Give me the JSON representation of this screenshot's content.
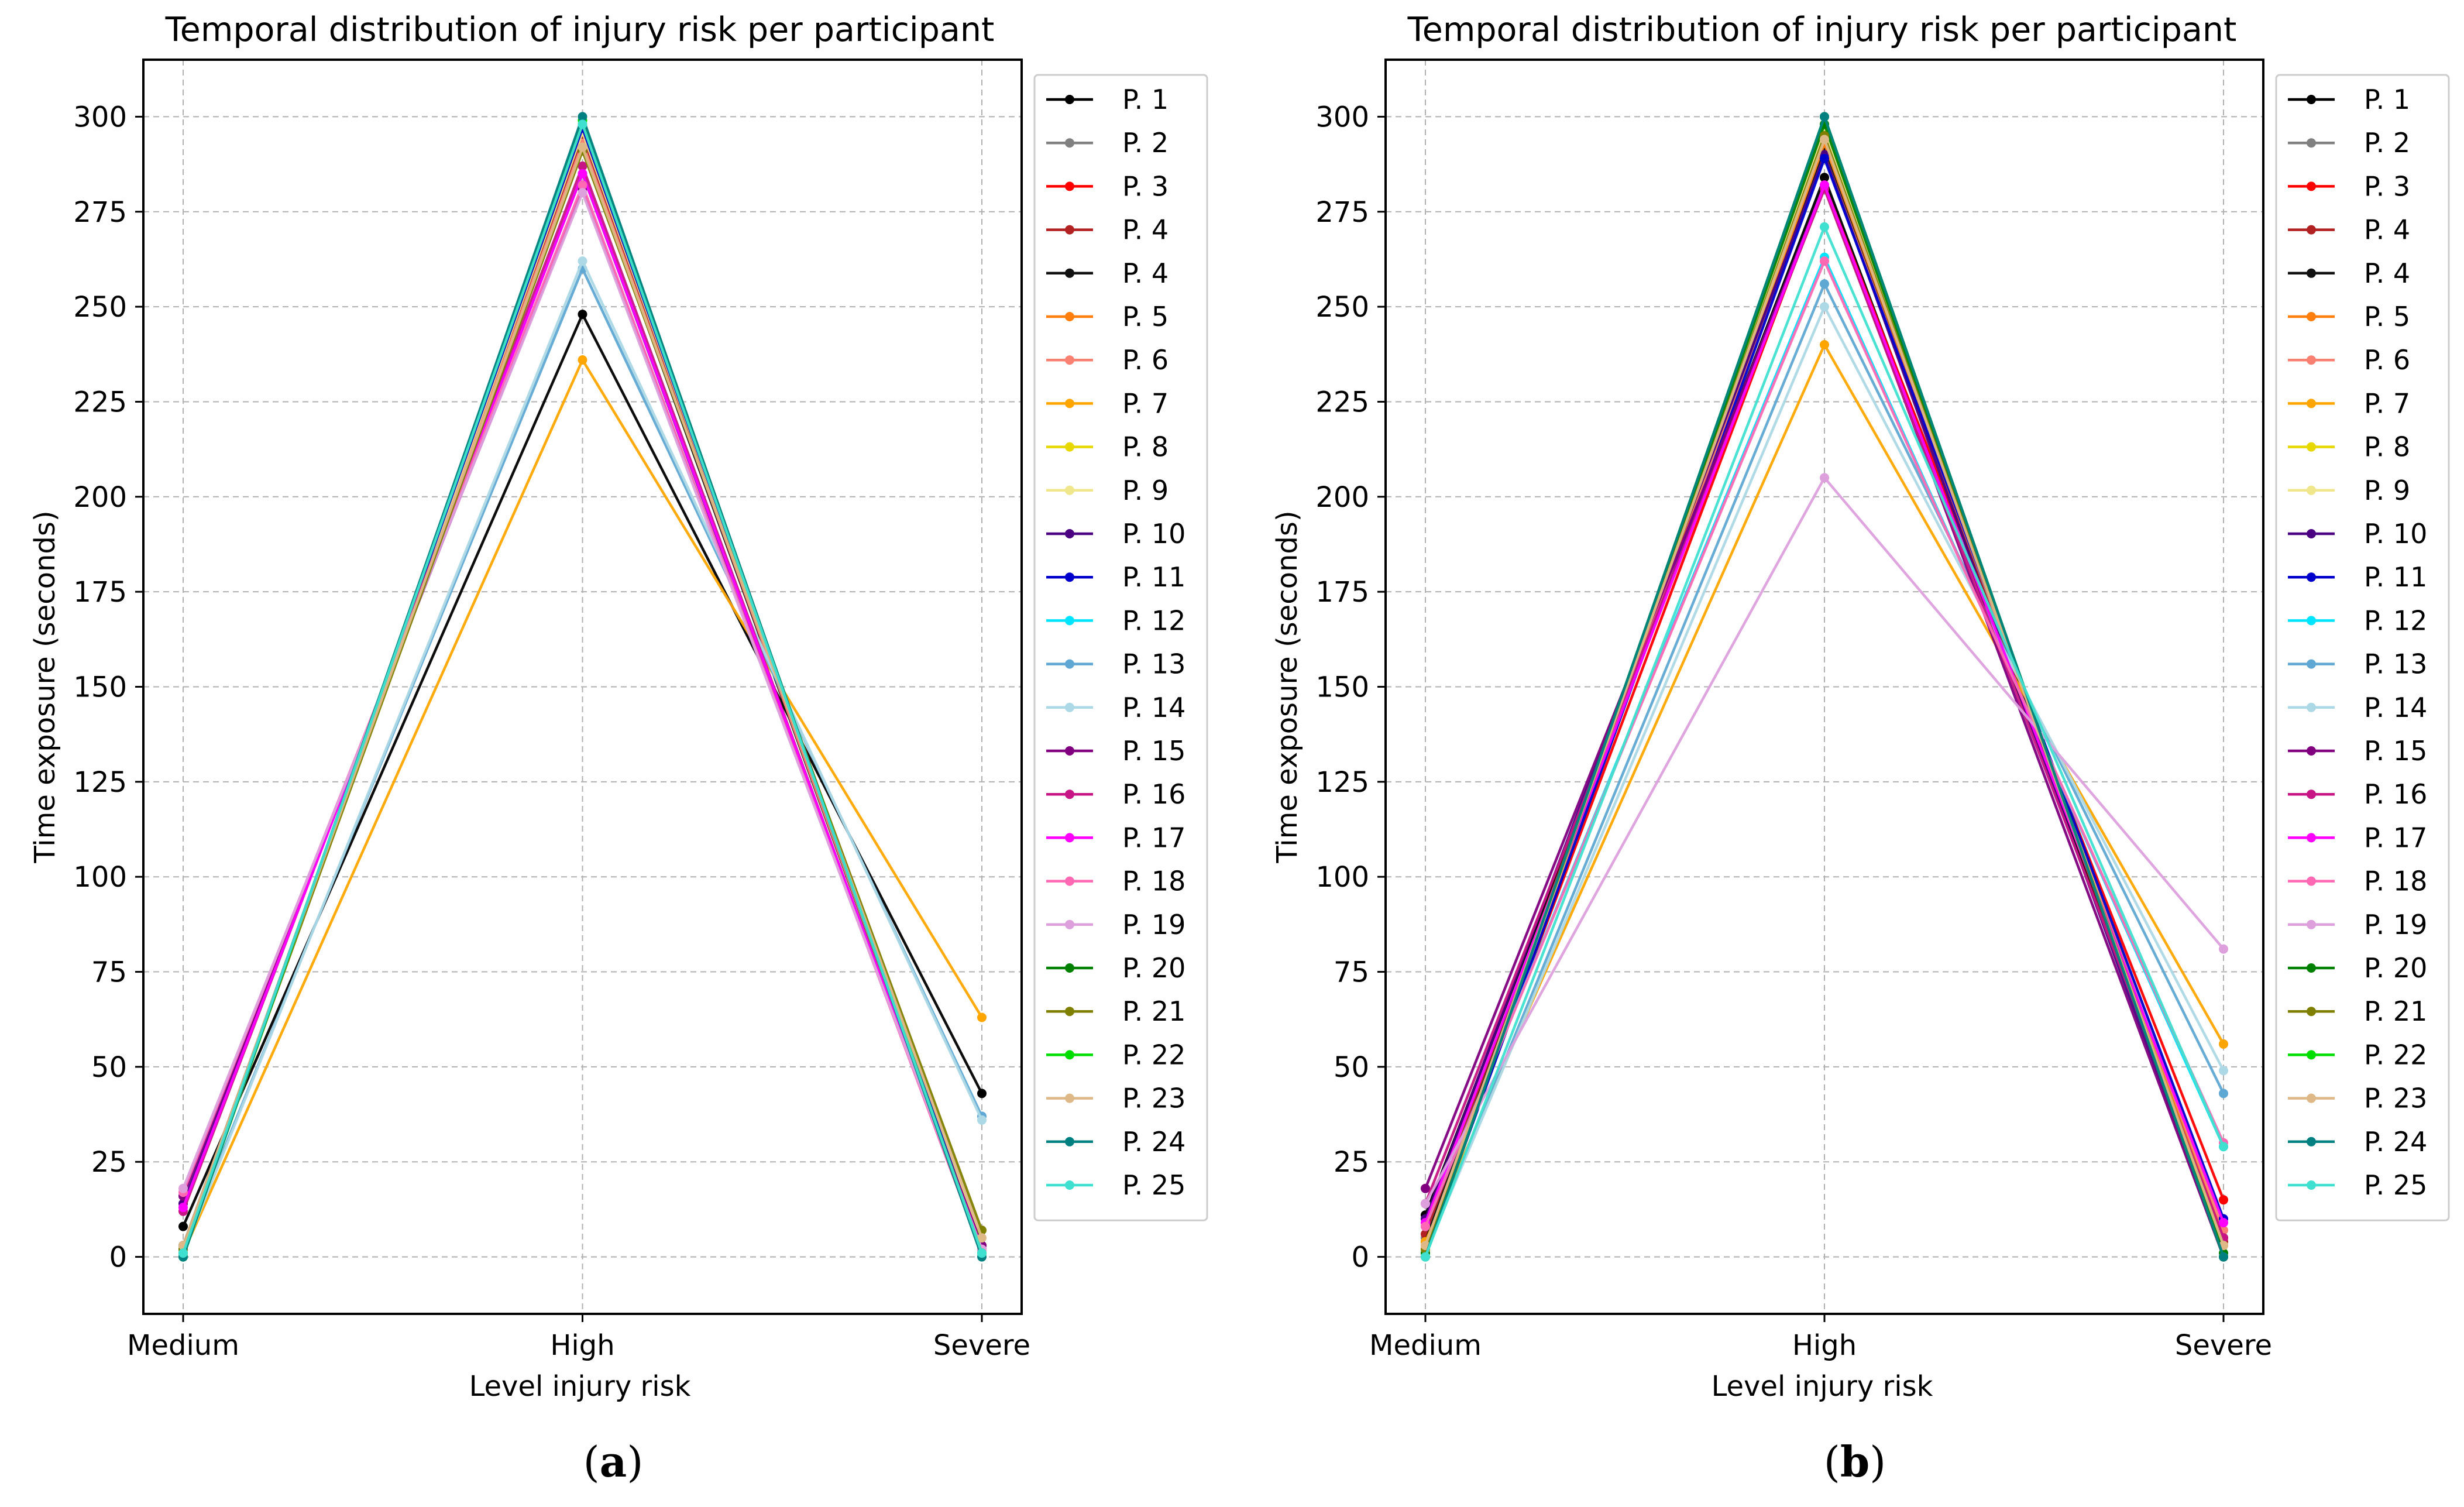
{
  "panel_labels": [
    "a",
    "b"
  ],
  "chart_data": [
    {
      "type": "line",
      "title": "Temporal distribution of injury risk per participant",
      "xlabel": "Level injury risk",
      "ylabel": "Time exposure (seconds)",
      "categories": [
        "Medium",
        "High",
        "Severe"
      ],
      "ylim": [
        -15,
        315
      ],
      "yticks": [
        0,
        25,
        50,
        75,
        100,
        125,
        150,
        175,
        200,
        225,
        250,
        275,
        300
      ],
      "grid": true,
      "legend_position": "right",
      "series": [
        {
          "name": "P. 1",
          "color": "#000000",
          "values": [
            8,
            248,
            43
          ]
        },
        {
          "name": "P. 2",
          "color": "#808080",
          "values": [
            2,
            296,
            2
          ]
        },
        {
          "name": "P. 3",
          "color": "#ff0000",
          "values": [
            1,
            297,
            3
          ]
        },
        {
          "name": "P. 4",
          "color": "#b22222",
          "values": [
            2,
            295,
            3
          ]
        },
        {
          "name": "P. 4",
          "color": "#111111",
          "values": [
            3,
            292,
            2
          ]
        },
        {
          "name": "P. 5",
          "color": "#ff7f0e",
          "values": [
            1,
            297,
            2
          ]
        },
        {
          "name": "P. 6",
          "color": "#fa8072",
          "values": [
            2,
            293,
            2
          ]
        },
        {
          "name": "P. 7",
          "color": "#ffa500",
          "values": [
            1,
            236,
            63
          ]
        },
        {
          "name": "P. 8",
          "color": "#e6d800",
          "values": [
            0,
            298,
            2
          ]
        },
        {
          "name": "P. 9",
          "color": "#f0e68c",
          "values": [
            1,
            296,
            3
          ]
        },
        {
          "name": "P. 10",
          "color": "#4b0082",
          "values": [
            14,
            285,
            1
          ]
        },
        {
          "name": "P. 11",
          "color": "#0000cd",
          "values": [
            1,
            297,
            2
          ]
        },
        {
          "name": "P. 12",
          "color": "#00e5ff",
          "values": [
            0,
            299,
            1
          ]
        },
        {
          "name": "P. 13",
          "color": "#5fa8d3",
          "values": [
            2,
            260,
            37
          ]
        },
        {
          "name": "P. 14",
          "color": "#add8e6",
          "values": [
            1,
            262,
            36
          ]
        },
        {
          "name": "P. 15",
          "color": "#800080",
          "values": [
            16,
            281,
            3
          ]
        },
        {
          "name": "P. 16",
          "color": "#c71585",
          "values": [
            12,
            287,
            1
          ]
        },
        {
          "name": "P. 17",
          "color": "#ff00ff",
          "values": [
            13,
            285,
            2
          ]
        },
        {
          "name": "P. 18",
          "color": "#ff69b4",
          "values": [
            17,
            282,
            1
          ]
        },
        {
          "name": "P. 19",
          "color": "#dda0dd",
          "values": [
            18,
            280,
            2
          ]
        },
        {
          "name": "P. 20",
          "color": "#008000",
          "values": [
            1,
            298,
            1
          ]
        },
        {
          "name": "P. 21",
          "color": "#808000",
          "values": [
            2,
            291,
            7
          ]
        },
        {
          "name": "P. 22",
          "color": "#00dd00",
          "values": [
            0,
            299,
            1
          ]
        },
        {
          "name": "P. 23",
          "color": "#deb887",
          "values": [
            3,
            292,
            5
          ]
        },
        {
          "name": "P. 24",
          "color": "#008080",
          "values": [
            0,
            300,
            0
          ]
        },
        {
          "name": "P. 25",
          "color": "#40e0d0",
          "values": [
            1,
            298,
            1
          ]
        }
      ]
    },
    {
      "type": "line",
      "title": "Temporal distribution of injury risk per participant",
      "xlabel": "Level injury risk",
      "ylabel": "Time exposure (seconds)",
      "categories": [
        "Medium",
        "High",
        "Severe"
      ],
      "ylim": [
        -15,
        315
      ],
      "yticks": [
        0,
        25,
        50,
        75,
        100,
        125,
        150,
        175,
        200,
        225,
        250,
        275,
        300
      ],
      "grid": true,
      "legend_position": "right",
      "series": [
        {
          "name": "P. 1",
          "color": "#000000",
          "values": [
            11,
            284,
            5
          ]
        },
        {
          "name": "P. 2",
          "color": "#808080",
          "values": [
            5,
            290,
            5
          ]
        },
        {
          "name": "P. 3",
          "color": "#ff0000",
          "values": [
            3,
            282,
            15
          ]
        },
        {
          "name": "P. 4",
          "color": "#b22222",
          "values": [
            6,
            290,
            4
          ]
        },
        {
          "name": "P. 4",
          "color": "#111111",
          "values": [
            4,
            291,
            5
          ]
        },
        {
          "name": "P. 5",
          "color": "#ff7f0e",
          "values": [
            2,
            293,
            5
          ]
        },
        {
          "name": "P. 6",
          "color": "#fa8072",
          "values": [
            3,
            290,
            7
          ]
        },
        {
          "name": "P. 7",
          "color": "#ffa500",
          "values": [
            4,
            240,
            56
          ]
        },
        {
          "name": "P. 8",
          "color": "#e6d800",
          "values": [
            2,
            295,
            3
          ]
        },
        {
          "name": "P. 9",
          "color": "#f0e68c",
          "values": [
            1,
            296,
            3
          ]
        },
        {
          "name": "P. 10",
          "color": "#4b0082",
          "values": [
            10,
            290,
            0
          ]
        },
        {
          "name": "P. 11",
          "color": "#0000cd",
          "values": [
            1,
            289,
            10
          ]
        },
        {
          "name": "P. 12",
          "color": "#00e5ff",
          "values": [
            8,
            263,
            29
          ]
        },
        {
          "name": "P. 13",
          "color": "#5fa8d3",
          "values": [
            1,
            256,
            43
          ]
        },
        {
          "name": "P. 14",
          "color": "#add8e6",
          "values": [
            1,
            250,
            49
          ]
        },
        {
          "name": "P. 15",
          "color": "#800080",
          "values": [
            18,
            282,
            0
          ]
        },
        {
          "name": "P. 16",
          "color": "#c71585",
          "values": [
            14,
            281,
            5
          ]
        },
        {
          "name": "P. 17",
          "color": "#ff00ff",
          "values": [
            9,
            282,
            9
          ]
        },
        {
          "name": "P. 18",
          "color": "#ff69b4",
          "values": [
            8,
            262,
            30
          ]
        },
        {
          "name": "P. 19",
          "color": "#dda0dd",
          "values": [
            14,
            205,
            81
          ]
        },
        {
          "name": "P. 20",
          "color": "#008000",
          "values": [
            1,
            298,
            1
          ]
        },
        {
          "name": "P. 21",
          "color": "#808000",
          "values": [
            2,
            295,
            3
          ]
        },
        {
          "name": "P. 22",
          "color": "#00dd00",
          "values": [
            0,
            300,
            0
          ]
        },
        {
          "name": "P. 23",
          "color": "#deb887",
          "values": [
            3,
            294,
            3
          ]
        },
        {
          "name": "P. 24",
          "color": "#008080",
          "values": [
            0,
            300,
            0
          ]
        },
        {
          "name": "P. 25",
          "color": "#40e0d0",
          "values": [
            0,
            271,
            29
          ]
        }
      ]
    }
  ]
}
